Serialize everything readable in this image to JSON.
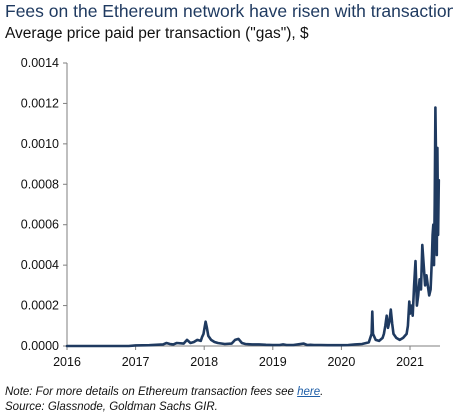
{
  "chart_data": {
    "type": "line",
    "title": "Fees on the Ethereum network have risen with transactions",
    "subtitle": "Average price paid per transaction (\"gas\"), $",
    "xlabel": "",
    "ylabel": "",
    "x_ticks": [
      "2016",
      "2017",
      "2018",
      "2019",
      "2020",
      "2021"
    ],
    "y_ticks": [
      "0.0000",
      "0.0002",
      "0.0004",
      "0.0006",
      "0.0008",
      "0.0010",
      "0.0012",
      "0.0014"
    ],
    "xlim": [
      2016.0,
      2021.45
    ],
    "ylim": [
      0,
      0.0014
    ],
    "grid": false,
    "series": [
      {
        "color": "#1f3a60",
        "x": [
          2016.0,
          2016.3,
          2016.6,
          2016.9,
          2017.0,
          2017.2,
          2017.4,
          2017.45,
          2017.5,
          2017.55,
          2017.6,
          2017.7,
          2017.75,
          2017.8,
          2017.85,
          2017.9,
          2017.95,
          2017.97,
          2017.99,
          2018.0,
          2018.02,
          2018.04,
          2018.06,
          2018.08,
          2018.1,
          2018.15,
          2018.2,
          2018.3,
          2018.4,
          2018.45,
          2018.5,
          2018.55,
          2018.6,
          2018.7,
          2018.8,
          2018.9,
          2019.0,
          2019.1,
          2019.15,
          2019.2,
          2019.3,
          2019.45,
          2019.5,
          2019.55,
          2019.6,
          2019.7,
          2019.8,
          2019.9,
          2020.0,
          2020.1,
          2020.2,
          2020.3,
          2020.4,
          2020.44,
          2020.45,
          2020.46,
          2020.5,
          2020.55,
          2020.6,
          2020.62,
          2020.64,
          2020.66,
          2020.68,
          2020.7,
          2020.72,
          2020.74,
          2020.76,
          2020.8,
          2020.85,
          2020.9,
          2020.95,
          2020.97,
          2020.99,
          2021.0,
          2021.02,
          2021.04,
          2021.06,
          2021.08,
          2021.1,
          2021.12,
          2021.14,
          2021.16,
          2021.18,
          2021.2,
          2021.22,
          2021.24,
          2021.26,
          2021.28,
          2021.3,
          2021.31,
          2021.32,
          2021.33,
          2021.34,
          2021.35,
          2021.36,
          2021.37,
          2021.38,
          2021.39,
          2021.4,
          2021.41,
          2021.42
        ],
        "y": [
          0.0,
          0.0,
          0.0,
          0.0,
          3e-06,
          4e-06,
          8e-06,
          1.5e-05,
          1e-05,
          8e-06,
          1.5e-05,
          1.2e-05,
          3e-05,
          1.5e-05,
          2e-05,
          3e-05,
          2.5e-05,
          4.5e-05,
          6e-05,
          8e-05,
          0.00012,
          9e-05,
          5e-05,
          4e-05,
          3e-05,
          2e-05,
          1.5e-05,
          1e-05,
          1.2e-05,
          3e-05,
          3.5e-05,
          1.5e-05,
          1e-05,
          8e-06,
          8e-06,
          6e-06,
          5e-06,
          5e-06,
          8e-06,
          5e-06,
          5e-06,
          1.2e-05,
          5e-06,
          6e-06,
          5e-06,
          5e-06,
          4e-06,
          4e-06,
          4e-06,
          5e-06,
          8e-06,
          1e-05,
          1.8e-05,
          6e-05,
          0.00017,
          6e-05,
          3e-05,
          2.5e-05,
          4e-05,
          6e-05,
          0.0001,
          0.00015,
          9e-05,
          0.00012,
          0.00018,
          0.00011,
          6e-05,
          4e-05,
          3e-05,
          4e-05,
          6e-05,
          0.0001,
          0.00022,
          0.00016,
          0.0002,
          0.00015,
          0.0003,
          0.00042,
          0.0002,
          0.00025,
          0.00033,
          0.00028,
          0.0005,
          0.0004,
          0.0003,
          0.00035,
          0.0003,
          0.00025,
          0.00028,
          0.00036,
          0.00045,
          0.00055,
          0.0006,
          0.0004,
          0.0007,
          0.00118,
          0.0009,
          0.00045,
          0.00098,
          0.00055,
          0.00082
        ]
      }
    ],
    "notes": {
      "note_prefix": "Note: For more details on Ethereum transaction fees see ",
      "note_link": "here",
      "note_suffix": ".",
      "source": "Source: Glassnode, Goldman Sachs GIR."
    }
  }
}
